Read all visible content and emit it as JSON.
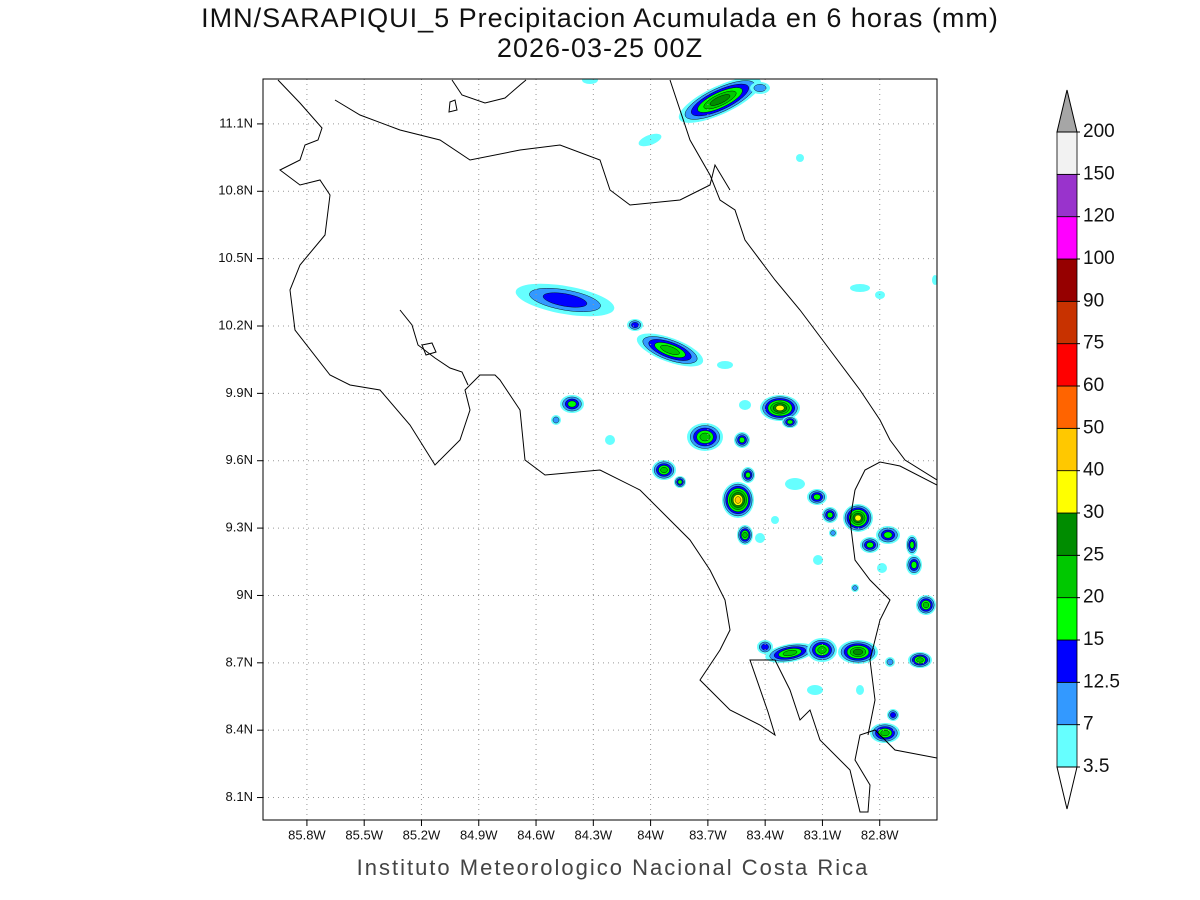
{
  "map": {
    "title": "IMN/SARAPIQUI_5 Precipitacion Acumulada en 6 horas (mm)",
    "subtitle": "2026-03-25 00Z",
    "credit": "Instituto Meteorologico Nacional Costa Rica",
    "xlim": [
      -86.03,
      -82.5
    ],
    "ylim": [
      8.0,
      11.3
    ],
    "xticks": [
      {
        "value": -85.8,
        "label": "85.8W"
      },
      {
        "value": -85.5,
        "label": "85.5W"
      },
      {
        "value": -85.2,
        "label": "85.2W"
      },
      {
        "value": -84.9,
        "label": "84.9W"
      },
      {
        "value": -84.6,
        "label": "84.6W"
      },
      {
        "value": -84.3,
        "label": "84.3W"
      },
      {
        "value": -84,
        "label": "84W"
      },
      {
        "value": -83.7,
        "label": "83.7W"
      },
      {
        "value": -83.4,
        "label": "83.4W"
      },
      {
        "value": -83.1,
        "label": "83.1W"
      },
      {
        "value": -82.8,
        "label": "82.8W"
      }
    ],
    "yticks": [
      {
        "value": 8.1,
        "label": "8.1N"
      },
      {
        "value": 8.4,
        "label": "8.4N"
      },
      {
        "value": 8.7,
        "label": "8.7N"
      },
      {
        "value": 9,
        "label": "9N"
      },
      {
        "value": 9.3,
        "label": "9.3N"
      },
      {
        "value": 9.6,
        "label": "9.6N"
      },
      {
        "value": 9.9,
        "label": "9.9N"
      },
      {
        "value": 10.2,
        "label": "10.2N"
      },
      {
        "value": 10.5,
        "label": "10.5N"
      },
      {
        "value": 10.8,
        "label": "10.8N"
      },
      {
        "value": 11.1,
        "label": "11.1N"
      }
    ],
    "grid": true,
    "colorbar": {
      "levels": [
        3.5,
        7,
        12.5,
        15,
        20,
        25,
        30,
        40,
        50,
        60,
        75,
        90,
        100,
        120,
        150,
        200
      ],
      "colors": [
        "#66ffff",
        "#3399ff",
        "#0000ff",
        "#00ff00",
        "#00c800",
        "#008c00",
        "#ffff00",
        "#ffc800",
        "#ff6400",
        "#ff0000",
        "#c83200",
        "#960000",
        "#ff00ff",
        "#9933cc",
        "#f2f2f2"
      ],
      "over_color": "#a6a6a6",
      "under_color": "#ffffff"
    }
  }
}
